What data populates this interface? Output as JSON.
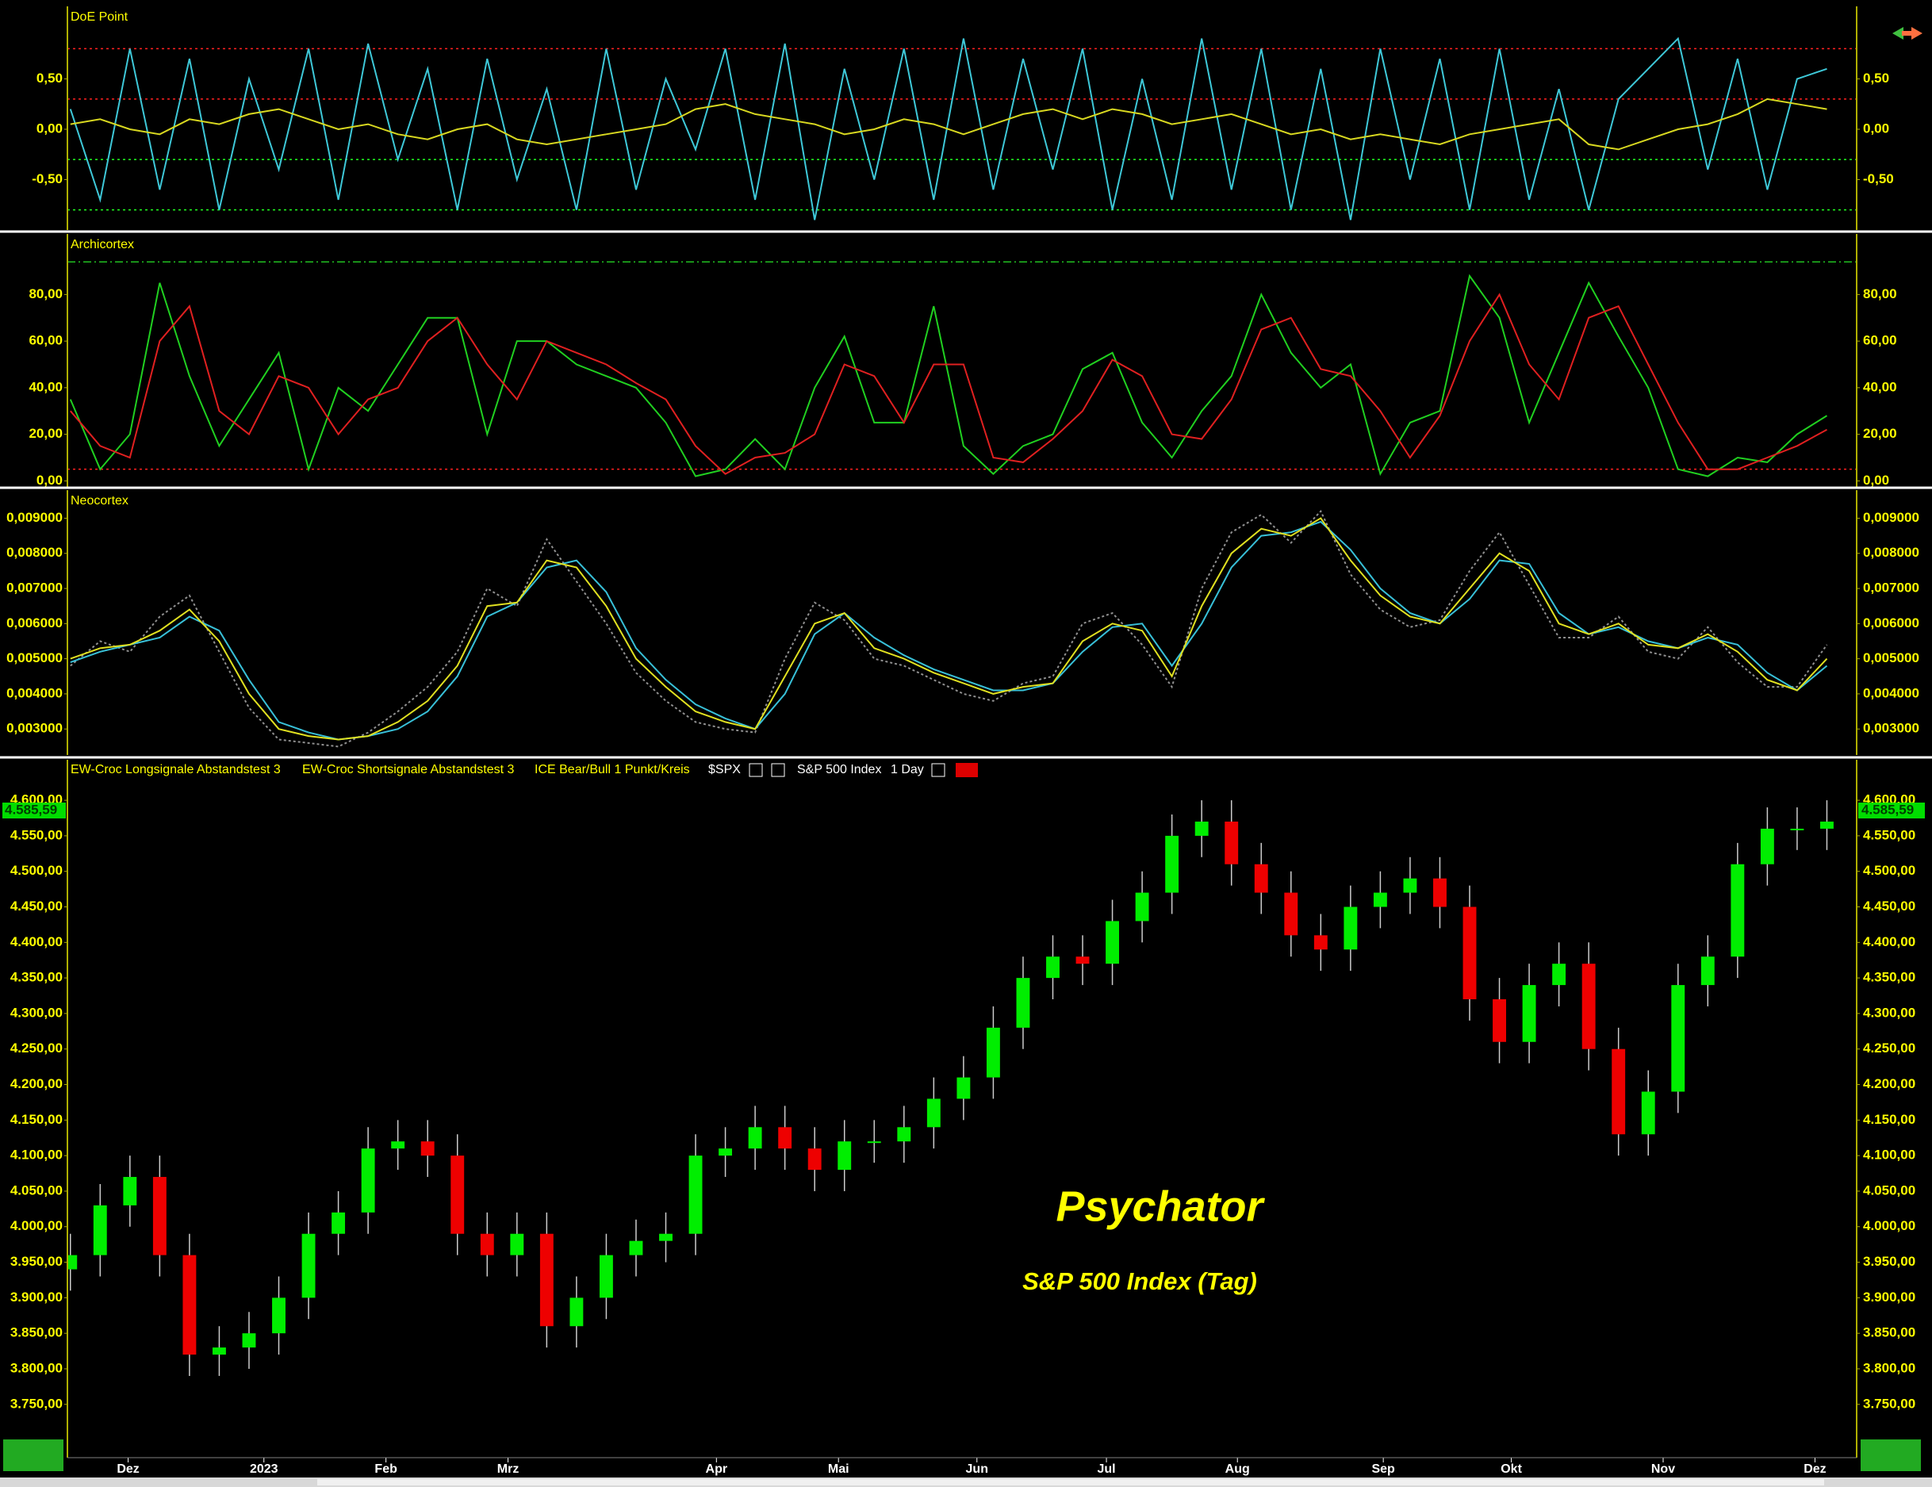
{
  "chart_data": [
    {
      "type": "line",
      "title": "DoE Point",
      "ylim": [
        -1.0,
        1.22
      ],
      "xlim": [
        -0.1,
        60
      ],
      "yticks": [
        {
          "value": -0.5,
          "label": "-0,50"
        },
        {
          "value": 0,
          "label": "0,00"
        },
        {
          "value": 0.5,
          "label": "0,50"
        }
      ],
      "reference_lines": [
        {
          "value": 0.8,
          "color": "#ff2020"
        },
        {
          "value": 0.3,
          "color": "#ff2020"
        },
        {
          "value": -0.3,
          "color": "#20ff20"
        },
        {
          "value": -0.8,
          "color": "#20ff20"
        }
      ],
      "series": [
        {
          "color": "#3ec8d8",
          "values": [
            0.2,
            -0.7,
            0.8,
            -0.6,
            0.7,
            -0.8,
            0.5,
            -0.4,
            0.8,
            -0.7,
            0.85,
            -0.3,
            0.6,
            -0.8,
            0.7,
            -0.5,
            0.4,
            -0.8,
            0.8,
            -0.6,
            0.5,
            -0.2,
            0.8,
            -0.7,
            0.85,
            -0.9,
            0.6,
            -0.5,
            0.8,
            -0.7,
            0.9,
            -0.6,
            0.7,
            -0.4,
            0.8,
            -0.8,
            0.5,
            -0.7,
            0.9,
            -0.6,
            0.8,
            -0.8,
            0.6,
            -0.9,
            0.8,
            -0.5,
            0.7,
            -0.8,
            0.8,
            -0.7,
            0.4,
            -0.8,
            0.3,
            0.6,
            0.9,
            -0.4,
            0.7,
            -0.6,
            0.5,
            0.6
          ]
        },
        {
          "color": "#d8d820",
          "values": [
            0.05,
            0.1,
            0.0,
            -0.05,
            0.1,
            0.05,
            0.15,
            0.2,
            0.1,
            0.0,
            0.05,
            -0.05,
            -0.1,
            0.0,
            0.05,
            -0.1,
            -0.15,
            -0.1,
            -0.05,
            0.0,
            0.05,
            0.2,
            0.25,
            0.15,
            0.1,
            0.05,
            -0.05,
            0.0,
            0.1,
            0.05,
            -0.05,
            0.05,
            0.15,
            0.2,
            0.1,
            0.2,
            0.15,
            0.05,
            0.1,
            0.15,
            0.05,
            -0.05,
            0.0,
            -0.1,
            -0.05,
            -0.1,
            -0.15,
            -0.05,
            0.0,
            0.05,
            0.1,
            -0.15,
            -0.2,
            -0.1,
            0.0,
            0.05,
            0.15,
            0.3,
            0.25,
            0.2
          ]
        }
      ]
    },
    {
      "type": "line",
      "title": "Archicortex",
      "ylim": [
        -2.6,
        106
      ],
      "xlim": [
        -0.1,
        60
      ],
      "yticks": [
        {
          "value": 0,
          "label": "0,00"
        },
        {
          "value": 20,
          "label": "20,00"
        },
        {
          "value": 40,
          "label": "40,00"
        },
        {
          "value": 60,
          "label": "60,00"
        },
        {
          "value": 80,
          "label": "80,00"
        }
      ],
      "reference_lines": [
        {
          "value": 94,
          "color": "#20c020"
        },
        {
          "value": 5,
          "color": "#ff2020"
        }
      ],
      "series": [
        {
          "color": "#20d020",
          "values": [
            35,
            5,
            20,
            85,
            45,
            15,
            35,
            55,
            5,
            40,
            30,
            50,
            70,
            70,
            20,
            60,
            60,
            50,
            45,
            40,
            25,
            2,
            5,
            18,
            5,
            40,
            62,
            25,
            25,
            75,
            15,
            3,
            15,
            20,
            48,
            55,
            25,
            10,
            30,
            45,
            80,
            55,
            40,
            50,
            3,
            25,
            30,
            88,
            70,
            25,
            55,
            85,
            62,
            40,
            5,
            2,
            10,
            8,
            20,
            28
          ]
        },
        {
          "color": "#e02020",
          "values": [
            30,
            15,
            10,
            60,
            75,
            30,
            20,
            45,
            40,
            20,
            35,
            40,
            60,
            70,
            50,
            35,
            60,
            55,
            50,
            42,
            35,
            15,
            3,
            10,
            12,
            20,
            50,
            45,
            25,
            50,
            50,
            10,
            8,
            18,
            30,
            52,
            45,
            20,
            18,
            35,
            65,
            70,
            48,
            45,
            30,
            10,
            28,
            60,
            80,
            50,
            35,
            70,
            75,
            50,
            25,
            5,
            5,
            10,
            15,
            22
          ]
        }
      ]
    },
    {
      "type": "line",
      "title": "Neocortex",
      "ylim": [
        0.00226,
        0.0098
      ],
      "xlim": [
        -0.1,
        60
      ],
      "yticks": [
        {
          "value": 0.003,
          "label": "0,003000"
        },
        {
          "value": 0.004,
          "label": "0,004000"
        },
        {
          "value": 0.005,
          "label": "0,005000"
        },
        {
          "value": 0.006,
          "label": "0,006000"
        },
        {
          "value": 0.007,
          "label": "0,007000"
        },
        {
          "value": 0.008,
          "label": "0,008000"
        },
        {
          "value": 0.009,
          "label": "0,009000"
        }
      ],
      "series": [
        {
          "color": "#909090",
          "dashed": true,
          "values": [
            0.0048,
            0.0055,
            0.0052,
            0.0062,
            0.0068,
            0.0052,
            0.0036,
            0.0027,
            0.0026,
            0.0025,
            0.0029,
            0.0035,
            0.0042,
            0.0052,
            0.007,
            0.0065,
            0.0084,
            0.0072,
            0.006,
            0.0046,
            0.0038,
            0.0032,
            0.003,
            0.0029,
            0.005,
            0.0066,
            0.0061,
            0.005,
            0.0048,
            0.0044,
            0.004,
            0.0038,
            0.0043,
            0.0045,
            0.006,
            0.0063,
            0.0054,
            0.0042,
            0.007,
            0.0086,
            0.0091,
            0.0083,
            0.0092,
            0.0074,
            0.0064,
            0.0059,
            0.0061,
            0.0075,
            0.0086,
            0.0071,
            0.0056,
            0.0056,
            0.0062,
            0.0052,
            0.005,
            0.0059,
            0.0049,
            0.0042,
            0.0042,
            0.0054
          ]
        },
        {
          "color": "#38c0d8",
          "values": [
            0.0049,
            0.0052,
            0.0054,
            0.0056,
            0.0062,
            0.0058,
            0.0044,
            0.0032,
            0.0029,
            0.0027,
            0.0028,
            0.003,
            0.0035,
            0.0045,
            0.0062,
            0.0066,
            0.0076,
            0.0078,
            0.0069,
            0.0053,
            0.0044,
            0.0037,
            0.0033,
            0.003,
            0.004,
            0.0057,
            0.0063,
            0.0056,
            0.0051,
            0.0047,
            0.0044,
            0.0041,
            0.0041,
            0.0043,
            0.0052,
            0.0059,
            0.006,
            0.0048,
            0.006,
            0.0076,
            0.0085,
            0.0086,
            0.0089,
            0.0081,
            0.007,
            0.0063,
            0.006,
            0.0067,
            0.0078,
            0.0077,
            0.0063,
            0.0057,
            0.0059,
            0.0055,
            0.0053,
            0.0056,
            0.0054,
            0.0046,
            0.0041,
            0.0048
          ]
        },
        {
          "color": "#e0e020",
          "values": [
            0.005,
            0.0053,
            0.0054,
            0.0058,
            0.0064,
            0.0055,
            0.004,
            0.003,
            0.0028,
            0.0027,
            0.0028,
            0.0032,
            0.0038,
            0.0048,
            0.0065,
            0.0066,
            0.0078,
            0.0076,
            0.0065,
            0.005,
            0.0042,
            0.0035,
            0.0032,
            0.003,
            0.0045,
            0.006,
            0.0063,
            0.0053,
            0.005,
            0.0046,
            0.0043,
            0.004,
            0.0042,
            0.0043,
            0.0055,
            0.006,
            0.0058,
            0.0045,
            0.0065,
            0.008,
            0.0087,
            0.0085,
            0.009,
            0.0078,
            0.0068,
            0.0062,
            0.006,
            0.007,
            0.008,
            0.0075,
            0.006,
            0.0057,
            0.006,
            0.0054,
            0.0053,
            0.0057,
            0.0052,
            0.0044,
            0.0041,
            0.005
          ]
        }
      ]
    },
    {
      "type": "candlestick",
      "title": "Psychator",
      "subtitle": "S&P 500 Index (Tag)",
      "legend_items": [
        "EW-Croc Longsignale Abstandstest 3",
        "EW-Croc Shortsignale Abstandstest 3",
        "ICE Bear/Bull 1 Punkt/Kreis"
      ],
      "symbol": "$SPX",
      "instrument": "S&P 500 Index",
      "interval": "1 Day",
      "last_price": {
        "value": 4585.59,
        "label": "4.585,59"
      },
      "up_color": "#00ee00",
      "down_color": "#ee0000",
      "ylim": [
        3675,
        4657
      ],
      "xlim": [
        -0.1,
        60
      ],
      "yticks": [
        {
          "value": 3750,
          "label": "3.750,00"
        },
        {
          "value": 3800,
          "label": "3.800,00"
        },
        {
          "value": 3850,
          "label": "3.850,00"
        },
        {
          "value": 3900,
          "label": "3.900,00"
        },
        {
          "value": 3950,
          "label": "3.950,00"
        },
        {
          "value": 4000,
          "label": "4.000,00"
        },
        {
          "value": 4050,
          "label": "4.050,00"
        },
        {
          "value": 4100,
          "label": "4.100,00"
        },
        {
          "value": 4150,
          "label": "4.150,00"
        },
        {
          "value": 4200,
          "label": "4.200,00"
        },
        {
          "value": 4250,
          "label": "4.250,00"
        },
        {
          "value": 4300,
          "label": "4.300,00"
        },
        {
          "value": 4350,
          "label": "4.350,00"
        },
        {
          "value": 4400,
          "label": "4.400,00"
        },
        {
          "value": 4450,
          "label": "4.450,00"
        },
        {
          "value": 4500,
          "label": "4.500,00"
        },
        {
          "value": 4550,
          "label": "4.550,00"
        },
        {
          "value": 4600,
          "label": "4.600,00"
        }
      ],
      "xticks": [
        {
          "value": 1.94,
          "label": "Dez"
        },
        {
          "value": 6.5,
          "label": "2023"
        },
        {
          "value": 10.6,
          "label": "Feb"
        },
        {
          "value": 14.7,
          "label": "Mrz"
        },
        {
          "value": 21.7,
          "label": "Apr"
        },
        {
          "value": 25.8,
          "label": "Mai"
        },
        {
          "value": 30.45,
          "label": "Jun"
        },
        {
          "value": 34.8,
          "label": "Jul"
        },
        {
          "value": 39.2,
          "label": "Aug"
        },
        {
          "value": 44.1,
          "label": "Sep"
        },
        {
          "value": 48.4,
          "label": "Okt"
        },
        {
          "value": 53.5,
          "label": "Nov"
        },
        {
          "value": 58.6,
          "label": "Dez"
        }
      ],
      "open": [
        3940,
        3960,
        4030,
        4070,
        3960,
        3820,
        3830,
        3850,
        3900,
        3990,
        4020,
        4110,
        4120,
        4100,
        3990,
        3960,
        3990,
        3860,
        3900,
        3960,
        3980,
        3990,
        4100,
        4110,
        4140,
        4110,
        4080,
        4120,
        4120,
        4140,
        4180,
        4210,
        4280,
        4350,
        4380,
        4370,
        4430,
        4470,
        4550,
        4570,
        4510,
        4470,
        4410,
        4390,
        4450,
        4470,
        4490,
        4450,
        4320,
        4260,
        4340,
        4370,
        4250,
        4130,
        4190,
        4340,
        4380,
        4510,
        4560,
        4560
      ],
      "high": [
        3990,
        4060,
        4100,
        4100,
        3990,
        3860,
        3880,
        3930,
        4020,
        4050,
        4140,
        4150,
        4150,
        4130,
        4020,
        4020,
        4020,
        3930,
        3990,
        4010,
        4020,
        4130,
        4140,
        4170,
        4170,
        4140,
        4150,
        4150,
        4170,
        4210,
        4240,
        4310,
        4380,
        4410,
        4410,
        4460,
        4500,
        4580,
        4600,
        4600,
        4540,
        4500,
        4440,
        4480,
        4500,
        4520,
        4520,
        4480,
        4350,
        4370,
        4400,
        4400,
        4280,
        4220,
        4370,
        4410,
        4540,
        4590,
        4590,
        4600
      ],
      "low": [
        3910,
        3930,
        4000,
        3930,
        3790,
        3790,
        3800,
        3820,
        3870,
        3960,
        3990,
        4080,
        4070,
        3960,
        3930,
        3930,
        3830,
        3830,
        3870,
        3930,
        3950,
        3960,
        4070,
        4080,
        4080,
        4050,
        4050,
        4090,
        4090,
        4110,
        4150,
        4180,
        4250,
        4320,
        4340,
        4340,
        4400,
        4440,
        4520,
        4480,
        4440,
        4380,
        4360,
        4360,
        4420,
        4440,
        4420,
        4290,
        4230,
        4230,
        4310,
        4220,
        4100,
        4100,
        4160,
        4310,
        4350,
        4480,
        4530,
        4530
      ],
      "close": [
        3960,
        4030,
        4070,
        3960,
        3820,
        3830,
        3850,
        3900,
        3990,
        4020,
        4110,
        4120,
        4100,
        3990,
        3960,
        3990,
        3860,
        3900,
        3960,
        3980,
        3990,
        4100,
        4110,
        4140,
        4110,
        4080,
        4120,
        4120,
        4140,
        4180,
        4210,
        4280,
        4350,
        4380,
        4370,
        4430,
        4470,
        4550,
        4570,
        4510,
        4470,
        4410,
        4390,
        4450,
        4470,
        4490,
        4450,
        4320,
        4260,
        4340,
        4370,
        4250,
        4130,
        4190,
        4340,
        4380,
        4510,
        4560,
        4560,
        4570
      ]
    }
  ]
}
